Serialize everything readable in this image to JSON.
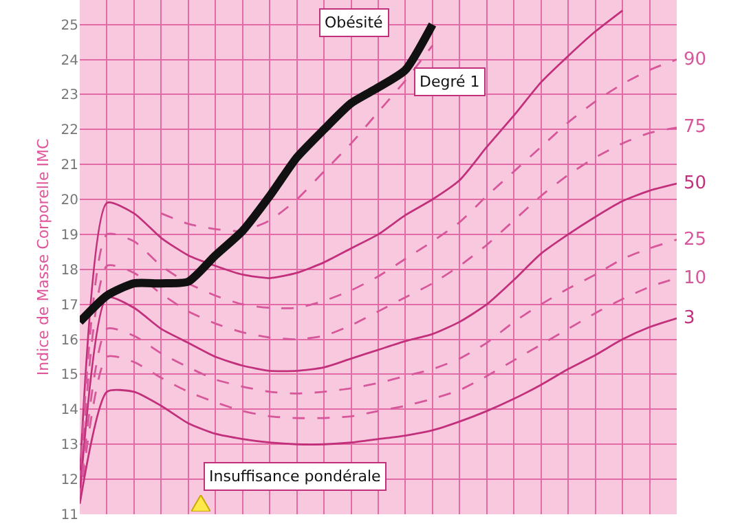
{
  "chart_data": {
    "type": "line",
    "ylabel": "Indice de Masse Corporelle IMC",
    "categories": [
      null,
      null,
      null,
      null,
      null,
      null,
      null,
      null,
      null,
      null,
      null,
      null,
      null,
      null,
      null,
      null,
      null,
      null,
      null,
      null,
      null,
      null,
      null
    ],
    "ylim": [
      11,
      25.7
    ],
    "yticks": [
      11,
      12,
      13,
      14,
      15,
      16,
      17,
      18,
      19,
      20,
      21,
      22,
      23,
      24,
      25
    ],
    "grid": true,
    "legend": false,
    "marker": "none",
    "relative": false,
    "annotations": [
      "Obésité",
      "Degré 1",
      "Insuffisance pondérale"
    ],
    "series": [
      {
        "color": "#c2307c",
        "line_style": "solid",
        "values": [
          12,
          19.9,
          19.6,
          18.9,
          18.4,
          18.1,
          17.85,
          17.75,
          17.9,
          18.2,
          18.6,
          19.0,
          19.55,
          20.0,
          20.55,
          21.5,
          22.4,
          23.35,
          24.1,
          24.8,
          25.4,
          null,
          null
        ]
      },
      {
        "name": "90",
        "color": "#d6579a",
        "line_style": "dashed",
        "values": [
          11.9,
          19.0,
          18.8,
          18.1,
          17.6,
          17.25,
          17.0,
          16.9,
          16.9,
          17.1,
          17.4,
          17.8,
          18.3,
          18.8,
          19.35,
          20.1,
          20.8,
          21.5,
          22.2,
          22.8,
          23.3,
          23.7,
          24.0
        ]
      },
      {
        "name": "75",
        "color": "#d6579a",
        "line_style": "dashed",
        "values": [
          11.7,
          18.1,
          17.9,
          17.3,
          16.8,
          16.45,
          16.2,
          16.05,
          16.0,
          16.1,
          16.4,
          16.8,
          17.2,
          17.6,
          18.1,
          18.7,
          19.4,
          20.1,
          20.7,
          21.2,
          21.6,
          21.9,
          22.05
        ]
      },
      {
        "name": "50",
        "color": "#c2307c",
        "line_style": "solid",
        "values": [
          11.5,
          17.2,
          16.9,
          16.3,
          15.9,
          15.5,
          15.25,
          15.1,
          15.1,
          15.2,
          15.45,
          15.7,
          15.95,
          16.15,
          16.5,
          17.0,
          17.7,
          18.45,
          19.0,
          19.5,
          19.95,
          20.25,
          20.45
        ]
      },
      {
        "name": "25",
        "color": "#d6579a",
        "line_style": "dashed",
        "values": [
          11.4,
          16.3,
          16.1,
          15.6,
          15.2,
          14.85,
          14.65,
          14.5,
          14.45,
          14.5,
          14.6,
          14.75,
          14.95,
          15.15,
          15.45,
          15.9,
          16.5,
          17.0,
          17.45,
          17.85,
          18.3,
          18.6,
          18.85
        ]
      },
      {
        "name": "10",
        "color": "#d6579a",
        "line_style": "dashed",
        "values": [
          11.35,
          15.5,
          15.35,
          14.9,
          14.5,
          14.2,
          13.95,
          13.8,
          13.75,
          13.75,
          13.8,
          13.95,
          14.1,
          14.3,
          14.55,
          14.95,
          15.4,
          15.85,
          16.3,
          16.75,
          17.15,
          17.5,
          17.75
        ]
      },
      {
        "name": "3",
        "color": "#c2307c",
        "line_style": "solid",
        "values": [
          11.3,
          14.5,
          14.5,
          14.1,
          13.6,
          13.3,
          13.15,
          13.05,
          13.0,
          13.0,
          13.05,
          13.15,
          13.25,
          13.4,
          13.65,
          13.95,
          14.3,
          14.7,
          15.15,
          15.55,
          16.0,
          16.35,
          16.6
        ]
      },
      {
        "color": "#d6579a",
        "line_style": "dashed",
        "values": [
          null,
          null,
          null,
          19.6,
          19.3,
          19.15,
          19.1,
          19.4,
          20.0,
          20.8,
          21.6,
          22.5,
          23.4,
          24.4,
          null,
          null,
          null,
          null,
          null,
          null,
          null,
          null,
          null
        ]
      },
      {
        "color": "#111111",
        "line_style": "solid",
        "values": [
          16.5,
          17.25,
          17.6,
          17.6,
          17.65,
          18.4,
          19.1,
          20.1,
          21.2,
          22.0,
          22.75,
          23.2,
          23.7,
          25.0,
          null,
          null,
          null,
          null,
          null,
          null,
          null,
          null,
          null
        ]
      }
    ]
  }
}
